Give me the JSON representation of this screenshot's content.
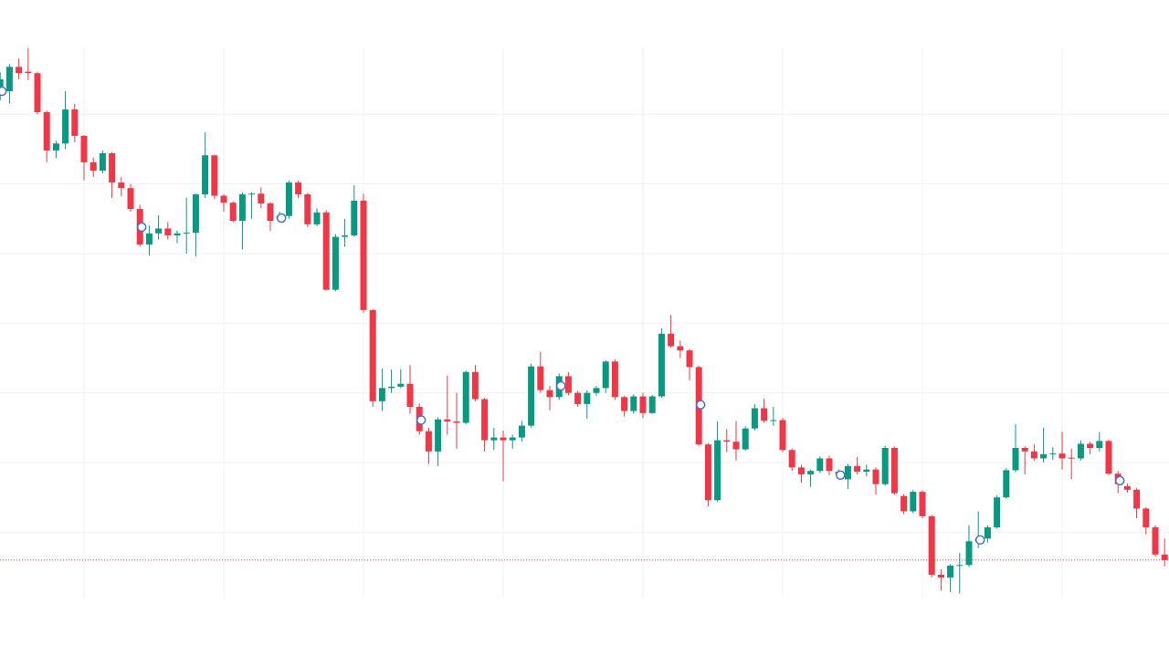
{
  "chart_data": {
    "type": "candlestick",
    "open": [
      73,
      73.3,
      76.8,
      76.1,
      75.9,
      70.3,
      64.8,
      65.8,
      70.7,
      66.9,
      63.1,
      61.9,
      64.4,
      60.2,
      59.4,
      56.4,
      51.3,
      52.9,
      53.6,
      52.6,
      52.9,
      53,
      58.5,
      64.1,
      58.3,
      57.3,
      54.7,
      58.5,
      58.6,
      57.2,
      54.9,
      55.4,
      60.2,
      58.5,
      54.2,
      55.9,
      44.8,
      52.4,
      52.6,
      57.6,
      41.9,
      28.8,
      30.7,
      30.9,
      31.3,
      28,
      24.5,
      21.6,
      26.2,
      25.9,
      25.7,
      33,
      29.1,
      23.2,
      23.6,
      23.2,
      23.6,
      25.3,
      33.8,
      30.4,
      29.4,
      32.4,
      30,
      28.4,
      30,
      30.7,
      34.5,
      29.4,
      27.4,
      29.5,
      27.1,
      29.5,
      38.5,
      36.7,
      36.1,
      33.7,
      22.6,
      14.6,
      23.2,
      23,
      21.9,
      24.9,
      27.8,
      26,
      26.1,
      21.8,
      19.3,
      18.3,
      18.8,
      20.6,
      18.3,
      17.6,
      19.5,
      18.7,
      19,
      16.9,
      22.1,
      15.2,
      13,
      15.8,
      12.3,
      3.9,
      3.5,
      5.2,
      5.3,
      8.7,
      9.1,
      10.7,
      15,
      18.9,
      22.1,
      21.6,
      20.6,
      21.2,
      21.3,
      20.7,
      20.6,
      22.7,
      22.1,
      23.1,
      18.4,
      16.6,
      16.1,
      13.4,
      10.7,
      6.8
    ],
    "high": [
      76,
      77.2,
      78,
      79.5,
      76.1,
      70.5,
      66.2,
      73.3,
      71.5,
      67,
      63.8,
      64.8,
      64.6,
      61,
      60,
      57,
      54,
      55.5,
      54.5,
      53.3,
      58,
      58.6,
      67.4,
      64.2,
      58.5,
      57.5,
      58.8,
      58.8,
      59.5,
      57.4,
      56,
      60.5,
      60.5,
      58.7,
      56.5,
      56.2,
      52.8,
      55,
      59.8,
      58.6,
      42,
      33.5,
      33.4,
      33.4,
      34,
      28.5,
      25,
      26.5,
      32.5,
      30,
      33.2,
      34,
      29.3,
      25,
      24.6,
      24,
      26,
      34.2,
      35.9,
      31,
      32.8,
      33,
      30.3,
      30.4,
      31,
      34.7,
      34.8,
      29.6,
      29.8,
      30,
      29.7,
      39.3,
      41.2,
      37.5,
      36.3,
      33.9,
      22.8,
      25.9,
      24.8,
      26,
      25.2,
      28.4,
      29.2,
      28,
      26.4,
      22,
      19.7,
      19,
      20.9,
      21,
      19,
      19.8,
      20.8,
      19.7,
      19.3,
      22.4,
      22.3,
      15.5,
      16.1,
      16,
      12.5,
      4.7,
      5.4,
      7,
      11,
      13,
      11,
      15.3,
      19.2,
      25.5,
      22.3,
      22.6,
      25,
      22.2,
      24.4,
      22,
      23.2,
      23,
      24.4,
      23.3,
      18.8,
      17,
      16.3,
      13.6,
      11,
      9.1
    ],
    "low": [
      72,
      71.6,
      75,
      74.9,
      70,
      63.1,
      63.7,
      65,
      66,
      60.5,
      61,
      61.5,
      58,
      58.2,
      56,
      51,
      49.7,
      52,
      52,
      51.5,
      50,
      49.6,
      58,
      57.8,
      56,
      54.5,
      50.6,
      55,
      56.5,
      53.2,
      54.5,
      55,
      58,
      53.8,
      53.9,
      44.7,
      44.6,
      51,
      52.4,
      41.5,
      28,
      27.4,
      30,
      30.7,
      27,
      24,
      19.8,
      19.5,
      24,
      22,
      25.5,
      28.8,
      21.6,
      21.8,
      17.3,
      22,
      23,
      25,
      30,
      27.5,
      29,
      29.7,
      28,
      26.3,
      29.6,
      30,
      29,
      26.6,
      27,
      26.4,
      27,
      29.3,
      36.5,
      35,
      31.8,
      22.4,
      13.7,
      14.4,
      21.5,
      20.3,
      21.7,
      24.6,
      25.7,
      25.3,
      21.5,
      18.8,
      17.1,
      16.5,
      18.5,
      18.2,
      18,
      16.2,
      18.3,
      18,
      15.4,
      16.7,
      15.4,
      12.6,
      12.7,
      12,
      3.5,
      1.6,
      1.4,
      1.2,
      5,
      7.7,
      8.5,
      10.5,
      14.8,
      18.6,
      18.3,
      20.3,
      20,
      20.4,
      19,
      17.6,
      20.3,
      21.2,
      21.6,
      18.2,
      15.6,
      15.7,
      12,
      9.7,
      6.5,
      5.1
    ],
    "close": [
      75,
      76.8,
      75.9,
      75.9,
      70.3,
      64.8,
      65.8,
      70.7,
      66.9,
      63.1,
      61.9,
      64.4,
      60.2,
      59.4,
      56.4,
      51.3,
      52.9,
      53.6,
      52.6,
      52.9,
      53,
      58.5,
      64.1,
      58.3,
      57.3,
      54.7,
      58.5,
      58.6,
      57.2,
      54.7,
      55.4,
      60.2,
      58.5,
      54.2,
      55.9,
      44.8,
      52.4,
      52.6,
      57.6,
      41.9,
      28.8,
      30.7,
      30.9,
      31.3,
      28,
      24.5,
      21.6,
      26.2,
      25.9,
      25.7,
      33,
      29.1,
      23.2,
      23.6,
      23.2,
      23.6,
      25.3,
      33.8,
      30.4,
      29.4,
      32.4,
      30,
      28.4,
      30,
      30.7,
      34.5,
      29.4,
      27.4,
      29.5,
      27.1,
      29.5,
      38.5,
      36.7,
      36.1,
      33.7,
      22.6,
      14.6,
      23.2,
      23,
      21.9,
      24.9,
      27.8,
      26,
      26.1,
      21.8,
      19.3,
      18.3,
      18.8,
      20.6,
      18.8,
      18.7,
      19.5,
      18.7,
      19,
      16.9,
      22.1,
      15.6,
      13,
      15.8,
      12.3,
      3.9,
      3.5,
      5.2,
      5.3,
      8.7,
      9.1,
      10.7,
      15,
      18.9,
      22.1,
      21.6,
      20.6,
      21.2,
      21.3,
      20.6,
      20.6,
      22.7,
      22.1,
      23.1,
      18.4,
      16.9,
      16.1,
      13.4,
      10.7,
      6.8,
      6
    ],
    "up_color": "#089981",
    "down_color": "#f23645",
    "markers": {
      "color": "#4a6fd8",
      "indices": [
        0,
        15,
        30,
        45,
        60,
        75,
        90,
        105,
        120
      ],
      "values": [
        73.3,
        53.8,
        55.1,
        26.1,
        31,
        28.3,
        18.2,
        8.9,
        17.4
      ]
    },
    "last_price": 6,
    "last_price_color": "#f23645",
    "ylim": [
      -9.2,
      86.4
    ],
    "yticks": [
      10,
      20,
      30,
      40,
      50,
      60,
      70
    ],
    "grid": true
  }
}
